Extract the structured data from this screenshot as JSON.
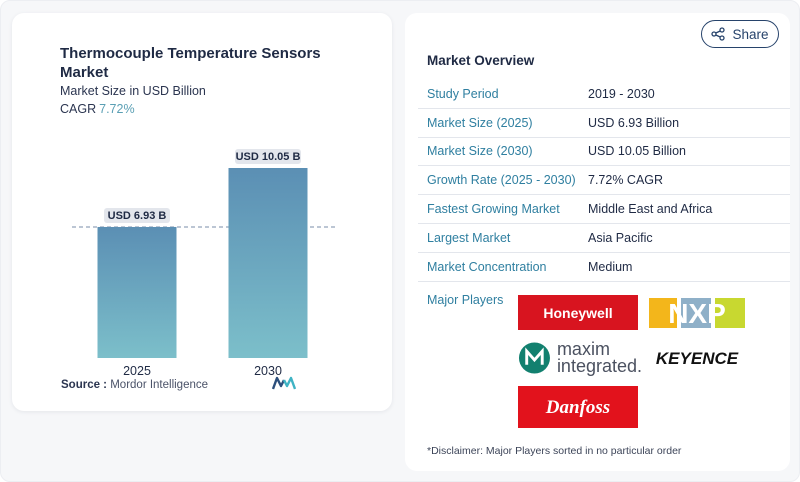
{
  "card": {
    "title": "Thermocouple Temperature Sensors Market",
    "subtitle": "Market Size in USD Billion",
    "cagr_label": "CAGR",
    "cagr_value": "7.72%",
    "source_label": "Source :",
    "source_value": "Mordor Intelligence"
  },
  "chart_data": {
    "type": "bar",
    "categories": [
      "2025",
      "2030"
    ],
    "values": [
      6.93,
      10.05
    ],
    "data_labels": [
      "USD 6.93 B",
      "USD 10.05 B"
    ],
    "title": "Thermocouple Temperature Sensors Market",
    "ylabel": "Market Size in USD Billion",
    "ylim": [
      0,
      12
    ],
    "reference_line": 6.93,
    "colors": {
      "bar_top": "#5b8fb4",
      "bar_bottom": "#7cbfca",
      "label_bg": "#e3e6ec"
    }
  },
  "share": {
    "label": "Share",
    "color": "#27436b"
  },
  "overview": {
    "title": "Market Overview",
    "rows": [
      {
        "label": "Study Period",
        "value": "2019 - 2030"
      },
      {
        "label": "Market Size (2025)",
        "value": "USD 6.93 Billion"
      },
      {
        "label": "Market Size (2030)",
        "value": "USD 10.05 Billion"
      },
      {
        "label": "Growth Rate (2025 - 2030)",
        "value": "7.72% CAGR"
      },
      {
        "label": "Fastest Growing Market",
        "value": "Middle East and Africa"
      },
      {
        "label": "Largest Market",
        "value": "Asia Pacific"
      },
      {
        "label": "Market Concentration",
        "value": "Medium"
      }
    ]
  },
  "players": {
    "label": "Major Players",
    "honeywell": "Honeywell",
    "nxp": "NXP",
    "maxim_line1": "maxim",
    "maxim_line2": "integrated.",
    "keyence": "KEYENCE",
    "danfoss": "Danfoss"
  },
  "disclaimer": "*Disclaimer: Major Players sorted in no particular order"
}
